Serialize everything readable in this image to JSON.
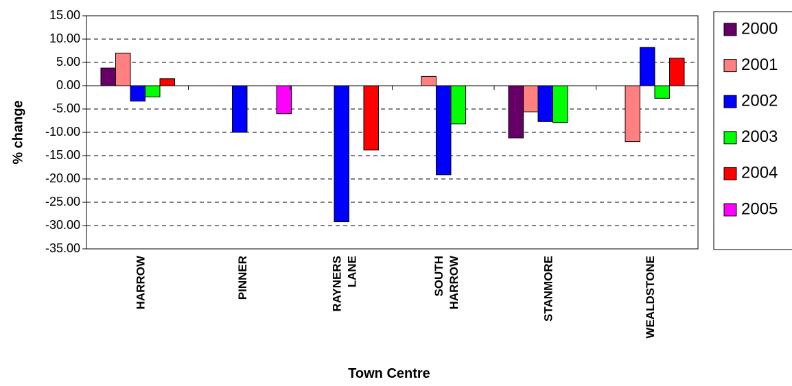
{
  "chart_data": {
    "type": "bar",
    "title": "",
    "xlabel": "Town Centre",
    "ylabel": "% change",
    "ylim": [
      -35,
      15
    ],
    "ytick_step": 5,
    "ytick_labels": [
      "15.00",
      "10.00",
      "5.00",
      "0.00",
      "-5.00",
      "-10.00",
      "-15.00",
      "-20.00",
      "-25.00",
      "-30.00",
      "-35.00"
    ],
    "grid": true,
    "legend_position": "right",
    "categories": [
      [
        "HARROW"
      ],
      [
        "PINNER"
      ],
      [
        "RAYNERS",
        "LANE"
      ],
      [
        "SOUTH",
        "HARROW"
      ],
      [
        "STANMORE"
      ],
      [
        "WEALDSTONE"
      ]
    ],
    "series": [
      {
        "name": "2000",
        "color": "#660066",
        "values": [
          3.8,
          null,
          null,
          null,
          -11.2,
          null
        ]
      },
      {
        "name": "2001",
        "color": "#ff8080",
        "values": [
          7.0,
          null,
          null,
          2.0,
          -5.6,
          -12.0
        ]
      },
      {
        "name": "2002",
        "color": "#0000ff",
        "values": [
          -3.3,
          -10.0,
          -29.2,
          -19.1,
          -7.7,
          8.2
        ]
      },
      {
        "name": "2003",
        "color": "#00ff00",
        "values": [
          -2.4,
          null,
          null,
          -8.2,
          -7.9,
          -2.7
        ]
      },
      {
        "name": "2004",
        "color": "#ff0000",
        "values": [
          1.5,
          null,
          -13.8,
          null,
          null,
          5.9
        ]
      },
      {
        "name": "2005",
        "color": "#ff00ff",
        "values": [
          null,
          -6.0,
          null,
          null,
          null,
          null
        ]
      }
    ]
  }
}
